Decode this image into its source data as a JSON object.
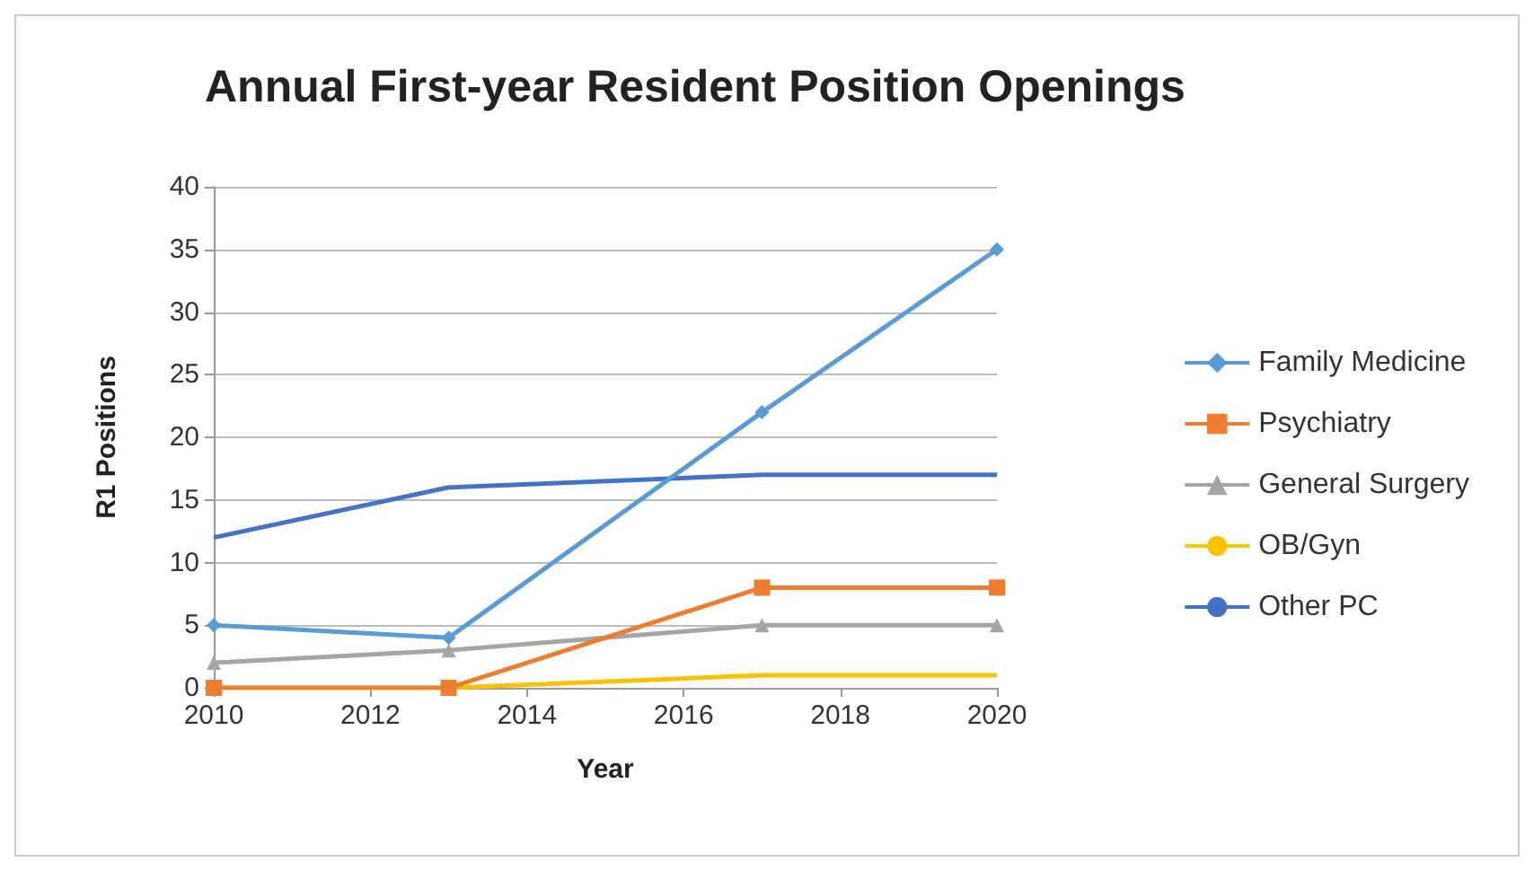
{
  "chart_data": {
    "type": "line",
    "title": "Annual First-year Resident Position Openings",
    "xlabel": "Year",
    "ylabel": "R1 Positions",
    "x": [
      2010,
      2013,
      2017,
      2020
    ],
    "xlim": [
      2010,
      2020
    ],
    "xticks": [
      2010,
      2012,
      2014,
      2016,
      2018,
      2020
    ],
    "ylim": [
      0,
      40
    ],
    "yticks": [
      0,
      5,
      10,
      15,
      20,
      25,
      30,
      35,
      40
    ],
    "grid": "y",
    "legend": "right",
    "series": [
      {
        "name": "Family Medicine",
        "color": "#5b9bd5",
        "marker": "diamond",
        "values": [
          5,
          4,
          22,
          35
        ]
      },
      {
        "name": "Psychiatry",
        "color": "#ed7d31",
        "marker": "square",
        "values": [
          0,
          0,
          8,
          8
        ]
      },
      {
        "name": "General Surgery",
        "color": "#a5a5a5",
        "marker": "triangle",
        "values": [
          2,
          3,
          5,
          5
        ]
      },
      {
        "name": "OB/Gyn",
        "color": "#ffc000",
        "marker": "none",
        "values": [
          0,
          0,
          1,
          1
        ]
      },
      {
        "name": "Other PC",
        "color": "#4472c4",
        "marker": "none",
        "values": [
          12,
          16,
          17,
          17
        ]
      }
    ]
  }
}
